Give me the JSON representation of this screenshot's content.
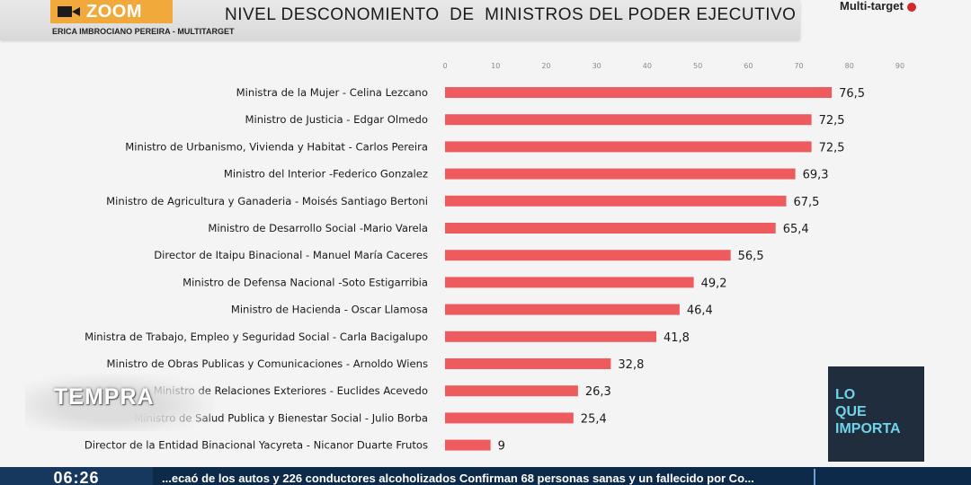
{
  "header": {
    "zoom_label": "ZOOM",
    "credit": "ERICA IMBROCIANO PEREIRA - MULTITARGET",
    "brand_logo": "Multi-target"
  },
  "overlays": {
    "tempra_logo": "TEMPRA",
    "lo_que_importa": [
      "LO",
      "QUE",
      "IMPORTA"
    ]
  },
  "ticker": {
    "time": "06:26",
    "headline": "...ecaó de los autos y 226 conductores alcoholizados     Confirman 68 personas sanas y un fallecido por Co..."
  },
  "colors": {
    "bar": "#ee5b5f",
    "title_band": "#e0e0e0",
    "zoom_badge": "#f2a93b",
    "ticker": "#0e2a4a",
    "loq_text": "#6fd3e9"
  },
  "chart_data": {
    "type": "bar",
    "orientation": "horizontal",
    "title": "NIVEL DESCONOMIENTO  DE  MINISTROS DEL PODER EJECUTIVO",
    "xlim": [
      0,
      90
    ],
    "xticks": [
      "0",
      "10",
      "20",
      "30",
      "40",
      "50",
      "60",
      "70",
      "80",
      "90"
    ],
    "grid": false,
    "categories": [
      "Ministra de la Mujer - Celina Lezcano",
      "Ministro de Justicia - Edgar Olmedo",
      "Ministro de Urbanismo, Vivienda y Habitat - Carlos Pereira",
      "Ministro del Interior -Federico Gonzalez",
      "Ministro de Agricultura y Ganaderia - Moisés Santiago Bertoni",
      "Ministro de Desarrollo Social -Mario Varela",
      "Director de Itaipu Binacional - Manuel María Caceres",
      "Ministro de Defensa Nacional -Soto Estigarribia",
      "Ministro de Hacienda - Oscar Llamosa",
      "Ministra de Trabajo, Empleo y Seguridad Social - Carla Bacigalupo",
      "Ministro de Obras Publicas y Comunicaciones - Arnoldo Wiens",
      "Ministro de Relaciones Exteriores - Euclides Acevedo",
      "Ministro de Salud Publica y Bienestar Social - Julio Borba",
      "Director de la Entidad Binacional Yacyreta - Nicanor Duarte Frutos"
    ],
    "values": [
      76.5,
      72.5,
      72.5,
      69.3,
      67.5,
      65.4,
      56.5,
      49.2,
      46.4,
      41.8,
      32.8,
      26.3,
      25.4,
      9
    ],
    "value_labels": [
      "76,5",
      "72,5",
      "72,5",
      "69,3",
      "67,5",
      "65,4",
      "56,5",
      "49,2",
      "46,4",
      "41,8",
      "32,8",
      "26,3",
      "25,4",
      "9"
    ]
  }
}
